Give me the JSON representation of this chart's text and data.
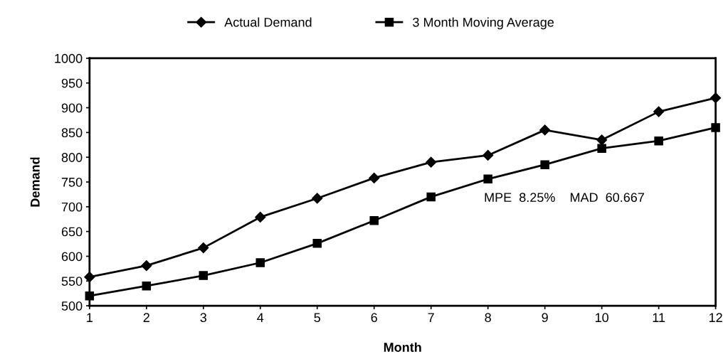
{
  "chart_data": {
    "type": "line",
    "xlabel": "Month",
    "ylabel": "Demand",
    "x": [
      1,
      2,
      3,
      4,
      5,
      6,
      7,
      8,
      9,
      10,
      11,
      12
    ],
    "series": [
      {
        "name": "Actual Demand",
        "color": "#000000",
        "marker": "diamond",
        "values": [
          558,
          581,
          617,
          679,
          717,
          758,
          790,
          804,
          855,
          835,
          892,
          920
        ]
      },
      {
        "name": "3 Month Moving Average",
        "color": "#000000",
        "marker": "square",
        "values": [
          520,
          540,
          561,
          587,
          626,
          672,
          720,
          756,
          785,
          818,
          833,
          860
        ]
      }
    ],
    "xlim": [
      1,
      12
    ],
    "xticks": [
      1,
      2,
      3,
      4,
      5,
      6,
      7,
      8,
      9,
      10,
      11,
      12
    ],
    "ylim": [
      500,
      1000
    ],
    "yticks": [
      500,
      550,
      600,
      650,
      700,
      750,
      800,
      850,
      900,
      950,
      1000
    ],
    "annotations": [
      "MPE  8.25%    MAD  60.667"
    ],
    "grid": false,
    "legend": "top",
    "line_style": "solid"
  }
}
